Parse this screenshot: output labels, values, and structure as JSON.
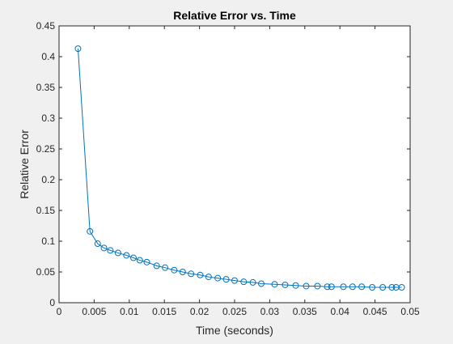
{
  "chart_data": {
    "type": "line",
    "title": "Relative Error vs. Time",
    "xlabel": "Time (seconds)",
    "ylabel": "Relative Error",
    "xlim": [
      0,
      0.05
    ],
    "ylim": [
      0,
      0.45
    ],
    "xticks": [
      "0",
      "0.005",
      "0.01",
      "0.015",
      "0.02",
      "0.025",
      "0.03",
      "0.035",
      "0.04",
      "0.045",
      "0.05"
    ],
    "yticks": [
      "0",
      "0.05",
      "0.1",
      "0.15",
      "0.2",
      "0.25",
      "0.3",
      "0.35",
      "0.4",
      "0.45"
    ],
    "grid": false,
    "series_color": "#0072BD",
    "marker": "circle",
    "series": [
      {
        "x": [
          0.0027,
          0.0044,
          0.0055,
          0.0064,
          0.0073,
          0.0084,
          0.0096,
          0.0106,
          0.0115,
          0.0125,
          0.0139,
          0.0151,
          0.0164,
          0.0176,
          0.0188,
          0.0201,
          0.0213,
          0.0226,
          0.0238,
          0.025,
          0.0263,
          0.0276,
          0.0288,
          0.0307,
          0.0322,
          0.0337,
          0.0352,
          0.0368,
          0.0382,
          0.0388,
          0.0405,
          0.0418,
          0.0431,
          0.0446,
          0.0461,
          0.0474,
          0.048,
          0.0488
        ],
        "y": [
          0.413,
          0.116,
          0.096,
          0.089,
          0.085,
          0.081,
          0.077,
          0.073,
          0.069,
          0.066,
          0.06,
          0.057,
          0.053,
          0.05,
          0.047,
          0.045,
          0.042,
          0.04,
          0.038,
          0.036,
          0.034,
          0.033,
          0.031,
          0.03,
          0.029,
          0.028,
          0.027,
          0.027,
          0.026,
          0.026,
          0.026,
          0.026,
          0.026,
          0.025,
          0.025,
          0.025,
          0.025,
          0.025
        ]
      }
    ]
  }
}
